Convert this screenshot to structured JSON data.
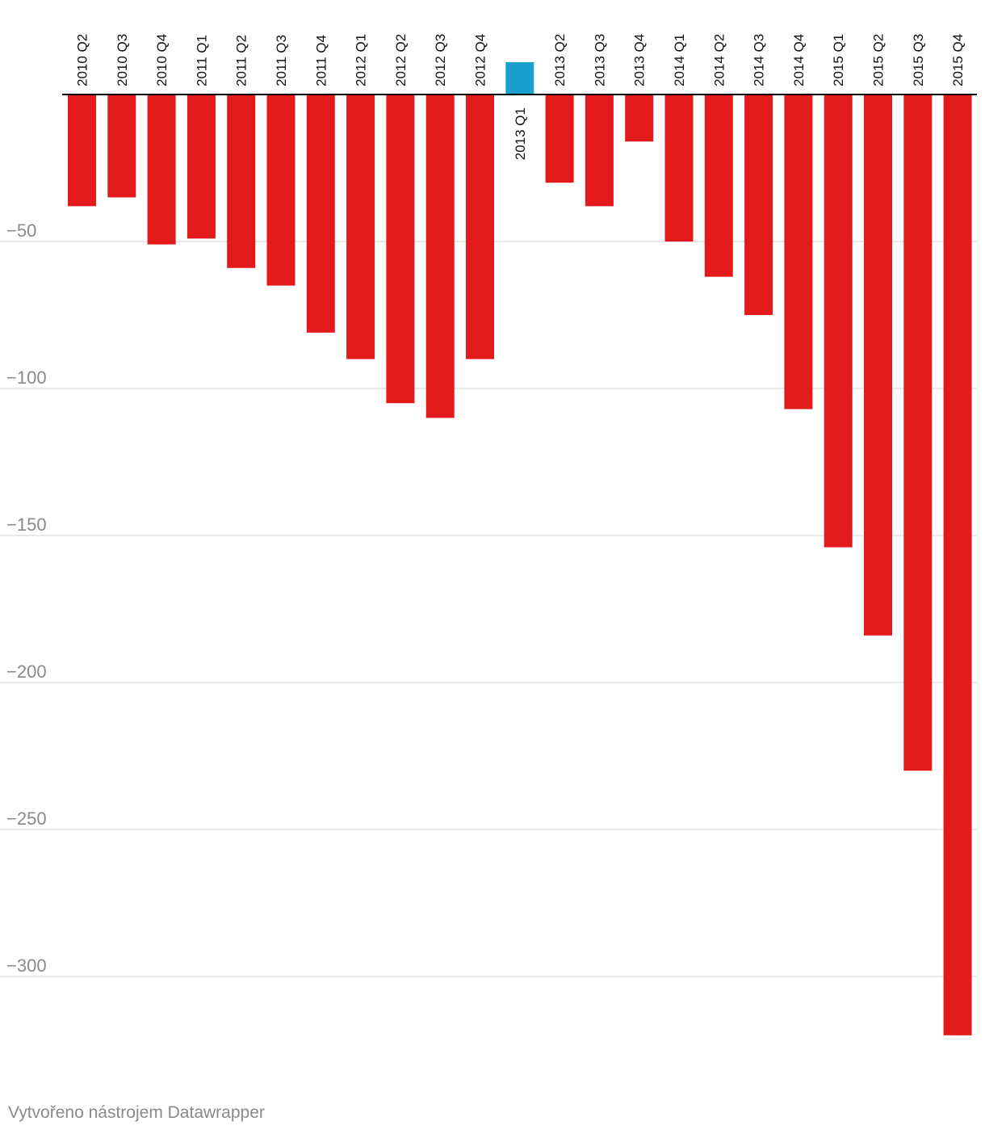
{
  "chart_data": {
    "type": "bar",
    "title": "",
    "xlabel": "",
    "ylabel": "",
    "categories": [
      "2010 Q2",
      "2010 Q3",
      "2010 Q4",
      "2011 Q1",
      "2011 Q2",
      "2011 Q3",
      "2011 Q4",
      "2012 Q1",
      "2012 Q2",
      "2012 Q3",
      "2012 Q4",
      "2013 Q1",
      "2013 Q2",
      "2013 Q3",
      "2013 Q4",
      "2014 Q1",
      "2014 Q2",
      "2014 Q3",
      "2014 Q4",
      "2015 Q1",
      "2015 Q2",
      "2015 Q3",
      "2015 Q4"
    ],
    "values": [
      -38,
      -35,
      -51,
      -49,
      -59,
      -65,
      -81,
      -90,
      -105,
      -110,
      -90,
      11,
      -30,
      -38,
      -16,
      -50,
      -62,
      -75,
      -107,
      -154,
      -184,
      -230,
      -320
    ],
    "ylim": [
      -320,
      11
    ],
    "yticks": [
      "−50",
      "−100",
      "−150",
      "−200",
      "−250",
      "−300"
    ],
    "ytick_values": [
      -50,
      -100,
      -150,
      -200,
      -250,
      -300
    ],
    "grid": true,
    "colors": {
      "negative": "#e31a1c",
      "positive": "#1a9fcf",
      "grid": "#e0e0e0",
      "axis": "#000000",
      "tick_text": "#8a8a8a",
      "label_text": "#111111"
    }
  },
  "footer": {
    "credit": "Vytvořeno nástrojem Datawrapper"
  }
}
